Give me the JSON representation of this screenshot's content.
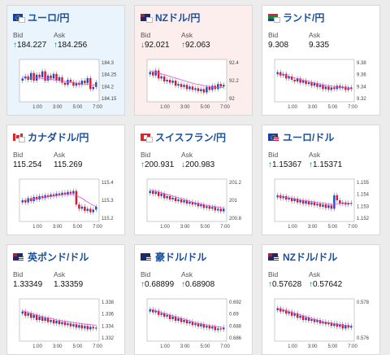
{
  "cards": [
    {
      "pair": "ユーロ/円",
      "flag": "eu-jp",
      "bg": "blue",
      "bid_label": "Bid",
      "ask_label": "Ask",
      "bid": "184.227",
      "ask": "184.256",
      "bid_dir": "up",
      "ask_dir": "up",
      "chart": {
        "yticks": [
          "184.3",
          "184.25",
          "184.2",
          "184.15"
        ],
        "xticks": [
          "1:00",
          "3:00",
          "5:00",
          "7:00"
        ],
        "closes": [
          0.55,
          0.6,
          0.52,
          0.68,
          0.5,
          0.64,
          0.58,
          0.72,
          0.5,
          0.62,
          0.55,
          0.66,
          0.5,
          0.58,
          0.45,
          0.4,
          0.52,
          0.47,
          0.38,
          0.45,
          0.4,
          0.5,
          0.44,
          0.56,
          0.3,
          0.35,
          0.46
        ],
        "ma": [
          0.58,
          0.58,
          0.57,
          0.57,
          0.57,
          0.56,
          0.56,
          0.55,
          0.55,
          0.54,
          0.53,
          0.52,
          0.51,
          0.5,
          0.49,
          0.48,
          0.47,
          0.46,
          0.45,
          0.44,
          0.43,
          0.42,
          0.42,
          0.41,
          0.41,
          0.4,
          0.4
        ]
      }
    },
    {
      "pair": "NZドル/円",
      "flag": "nz-jp",
      "bg": "red",
      "bid_label": "Bid",
      "ask_label": "Ask",
      "bid": "92.021",
      "ask": "92.063",
      "bid_dir": "down",
      "ask_dir": "up",
      "chart": {
        "yticks": [
          "92.4",
          "92.2",
          "92"
        ],
        "xticks": [
          "1:00",
          "3:00",
          "5:00",
          "7:00"
        ],
        "closes": [
          0.7,
          0.62,
          0.74,
          0.55,
          0.6,
          0.48,
          0.52,
          0.45,
          0.5,
          0.38,
          0.42,
          0.35,
          0.4,
          0.3,
          0.36,
          0.28,
          0.32,
          0.25,
          0.3,
          0.22,
          0.35,
          0.28,
          0.38,
          0.3,
          0.42,
          0.36,
          0.4
        ],
        "ma": [
          0.72,
          0.71,
          0.7,
          0.68,
          0.66,
          0.64,
          0.62,
          0.6,
          0.58,
          0.56,
          0.54,
          0.52,
          0.5,
          0.48,
          0.46,
          0.44,
          0.42,
          0.41,
          0.4,
          0.38,
          0.37,
          0.36,
          0.35,
          0.34,
          0.34,
          0.34,
          0.34
        ]
      }
    },
    {
      "pair": "ランド/円",
      "flag": "za-jp",
      "bg": "white",
      "bid_label": "Bid",
      "ask_label": "Ask",
      "bid": "9.308",
      "ask": "9.335",
      "bid_dir": "",
      "ask_dir": "",
      "chart": {
        "yticks": [
          "9.38",
          "9.36",
          "9.34",
          "9.32"
        ],
        "xticks": [
          "1:00",
          "3:00",
          "5:00",
          "7:00"
        ],
        "closes": [
          0.7,
          0.62,
          0.66,
          0.55,
          0.6,
          0.52,
          0.48,
          0.55,
          0.45,
          0.5,
          0.42,
          0.46,
          0.38,
          0.44,
          0.35,
          0.4,
          0.3,
          0.36,
          0.28,
          0.34,
          0.3,
          0.38,
          0.32,
          0.36,
          0.28,
          0.34,
          0.3
        ],
        "ma": [
          0.66,
          0.65,
          0.64,
          0.62,
          0.6,
          0.58,
          0.56,
          0.55,
          0.53,
          0.51,
          0.5,
          0.48,
          0.46,
          0.45,
          0.43,
          0.42,
          0.4,
          0.39,
          0.38,
          0.37,
          0.36,
          0.35,
          0.34,
          0.33,
          0.33,
          0.32,
          0.32
        ]
      }
    },
    {
      "pair": "カナダドル/円",
      "flag": "ca-jp",
      "bg": "white",
      "bid_label": "Bid",
      "ask_label": "Ask",
      "bid": "115.254",
      "ask": "115.269",
      "bid_dir": "",
      "ask_dir": "",
      "chart": {
        "yticks": [
          "115.4",
          "115.3",
          "115.2"
        ],
        "xticks": [
          "1:00",
          "3:00",
          "5:00",
          "7:00"
        ],
        "closes": [
          0.5,
          0.45,
          0.55,
          0.48,
          0.58,
          0.52,
          0.6,
          0.55,
          0.62,
          0.58,
          0.64,
          0.6,
          0.66,
          0.62,
          0.68,
          0.64,
          0.7,
          0.66,
          0.72,
          0.4,
          0.3,
          0.35,
          0.25,
          0.3,
          0.22,
          0.28,
          0.35
        ],
        "ma": [
          0.5,
          0.5,
          0.51,
          0.52,
          0.53,
          0.54,
          0.55,
          0.56,
          0.57,
          0.58,
          0.59,
          0.6,
          0.61,
          0.62,
          0.63,
          0.64,
          0.64,
          0.64,
          0.64,
          0.62,
          0.58,
          0.55,
          0.5,
          0.46,
          0.42,
          0.38,
          0.35
        ]
      }
    },
    {
      "pair": "スイスフラン/円",
      "flag": "ch-jp",
      "bg": "white",
      "bid_label": "Bid",
      "ask_label": "Ask",
      "bid": "200.931",
      "ask": "200.983",
      "bid_dir": "up",
      "ask_dir": "down",
      "chart": {
        "yticks": [
          "201.2",
          "201",
          "200.8"
        ],
        "xticks": [
          "1:00",
          "3:00",
          "5:00",
          "7:00"
        ],
        "closes": [
          0.72,
          0.65,
          0.7,
          0.6,
          0.66,
          0.55,
          0.6,
          0.52,
          0.56,
          0.48,
          0.52,
          0.45,
          0.5,
          0.42,
          0.46,
          0.4,
          0.44,
          0.36,
          0.4,
          0.32,
          0.36,
          0.3,
          0.34,
          0.26,
          0.3,
          0.24,
          0.3
        ],
        "ma": [
          0.74,
          0.73,
          0.72,
          0.7,
          0.68,
          0.66,
          0.64,
          0.62,
          0.6,
          0.58,
          0.56,
          0.54,
          0.52,
          0.5,
          0.48,
          0.46,
          0.44,
          0.42,
          0.41,
          0.4,
          0.38,
          0.37,
          0.36,
          0.35,
          0.34,
          0.33,
          0.32
        ]
      }
    },
    {
      "pair": "ユーロ/ドル",
      "flag": "eu-us",
      "bg": "white",
      "bid_label": "Bid",
      "ask_label": "Ask",
      "bid": "1.15367",
      "ask": "1.15371",
      "bid_dir": "up",
      "ask_dir": "up",
      "chart": {
        "yticks": [
          "1.155",
          "1.154",
          "1.153",
          "1.152"
        ],
        "xticks": [
          "1:00",
          "3:00",
          "5:00",
          "7:00"
        ],
        "closes": [
          0.62,
          0.55,
          0.6,
          0.52,
          0.56,
          0.48,
          0.54,
          0.45,
          0.5,
          0.42,
          0.48,
          0.4,
          0.45,
          0.38,
          0.42,
          0.35,
          0.4,
          0.32,
          0.38,
          0.3,
          0.62,
          0.5,
          0.42,
          0.45,
          0.4,
          0.44,
          0.42
        ],
        "ma": [
          0.6,
          0.59,
          0.58,
          0.57,
          0.56,
          0.55,
          0.54,
          0.52,
          0.51,
          0.5,
          0.49,
          0.48,
          0.47,
          0.46,
          0.45,
          0.44,
          0.43,
          0.42,
          0.41,
          0.4,
          0.41,
          0.42,
          0.42,
          0.42,
          0.42,
          0.42,
          0.42
        ]
      }
    },
    {
      "pair": "英ポンド/ドル",
      "flag": "gb-us",
      "bg": "white",
      "bid_label": "Bid",
      "ask_label": "Ask",
      "bid": "1.33349",
      "ask": "1.33359",
      "bid_dir": "",
      "ask_dir": "",
      "chart": {
        "yticks": [
          "1.338",
          "1.336",
          "1.334",
          "1.332"
        ],
        "xticks": [
          "1:00",
          "3:00",
          "5:00",
          "7:00"
        ],
        "closes": [
          0.7,
          0.6,
          0.66,
          0.55,
          0.62,
          0.5,
          0.58,
          0.48,
          0.55,
          0.45,
          0.5,
          0.42,
          0.48,
          0.4,
          0.45,
          0.38,
          0.42,
          0.35,
          0.4,
          0.32,
          0.38,
          0.3,
          0.36,
          0.28,
          0.34,
          0.3,
          0.32
        ],
        "ma": [
          0.72,
          0.7,
          0.68,
          0.66,
          0.64,
          0.62,
          0.6,
          0.58,
          0.56,
          0.55,
          0.54,
          0.52,
          0.5,
          0.49,
          0.48,
          0.47,
          0.46,
          0.45,
          0.44,
          0.43,
          0.42,
          0.41,
          0.4,
          0.4,
          0.39,
          0.38,
          0.38
        ]
      }
    },
    {
      "pair": "豪ドル/ドル",
      "flag": "au-us",
      "bg": "white",
      "bid_label": "Bid",
      "ask_label": "Ask",
      "bid": "0.68899",
      "ask": "0.68908",
      "bid_dir": "up",
      "ask_dir": "up",
      "chart": {
        "yticks": [
          "0.692",
          "0.69",
          "0.688",
          "0.686"
        ],
        "xticks": [
          "1:00",
          "3:00",
          "5:00",
          "7:00"
        ],
        "closes": [
          0.75,
          0.68,
          0.72,
          0.62,
          0.66,
          0.58,
          0.62,
          0.52,
          0.58,
          0.48,
          0.54,
          0.45,
          0.5,
          0.42,
          0.46,
          0.38,
          0.42,
          0.35,
          0.4,
          0.32,
          0.36,
          0.3,
          0.34,
          0.26,
          0.3,
          0.28,
          0.32
        ],
        "ma": [
          0.76,
          0.74,
          0.72,
          0.7,
          0.68,
          0.66,
          0.64,
          0.62,
          0.6,
          0.58,
          0.56,
          0.54,
          0.52,
          0.5,
          0.48,
          0.46,
          0.44,
          0.42,
          0.41,
          0.4,
          0.38,
          0.37,
          0.36,
          0.35,
          0.34,
          0.33,
          0.32
        ]
      }
    },
    {
      "pair": "NZドル/ドル",
      "flag": "nz-us",
      "bg": "white",
      "bid_label": "Bid",
      "ask_label": "Ask",
      "bid": "0.57628",
      "ask": "0.57642",
      "bid_dir": "up",
      "ask_dir": "up",
      "chart": {
        "yticks": [
          "0.578",
          "0.576"
        ],
        "xticks": [
          "1:00",
          "3:00",
          "5:00",
          "7:00"
        ],
        "closes": [
          0.78,
          0.7,
          0.74,
          0.65,
          0.7,
          0.6,
          0.66,
          0.55,
          0.6,
          0.5,
          0.56,
          0.48,
          0.52,
          0.45,
          0.5,
          0.42,
          0.46,
          0.4,
          0.44,
          0.36,
          0.42,
          0.34,
          0.4,
          0.3,
          0.38,
          0.32,
          0.36
        ],
        "ma": [
          0.78,
          0.76,
          0.74,
          0.72,
          0.7,
          0.68,
          0.66,
          0.64,
          0.62,
          0.6,
          0.58,
          0.56,
          0.54,
          0.52,
          0.5,
          0.48,
          0.46,
          0.45,
          0.44,
          0.42,
          0.41,
          0.4,
          0.39,
          0.38,
          0.37,
          0.36,
          0.36
        ]
      }
    }
  ],
  "colors": {
    "up": "#1650c8",
    "down": "#e0142c",
    "ma": "#e050e0",
    "axis": "#555555",
    "link": "#1a4f9c",
    "arrow_up": "#0a8a3a",
    "arrow_down": "#d02020"
  }
}
